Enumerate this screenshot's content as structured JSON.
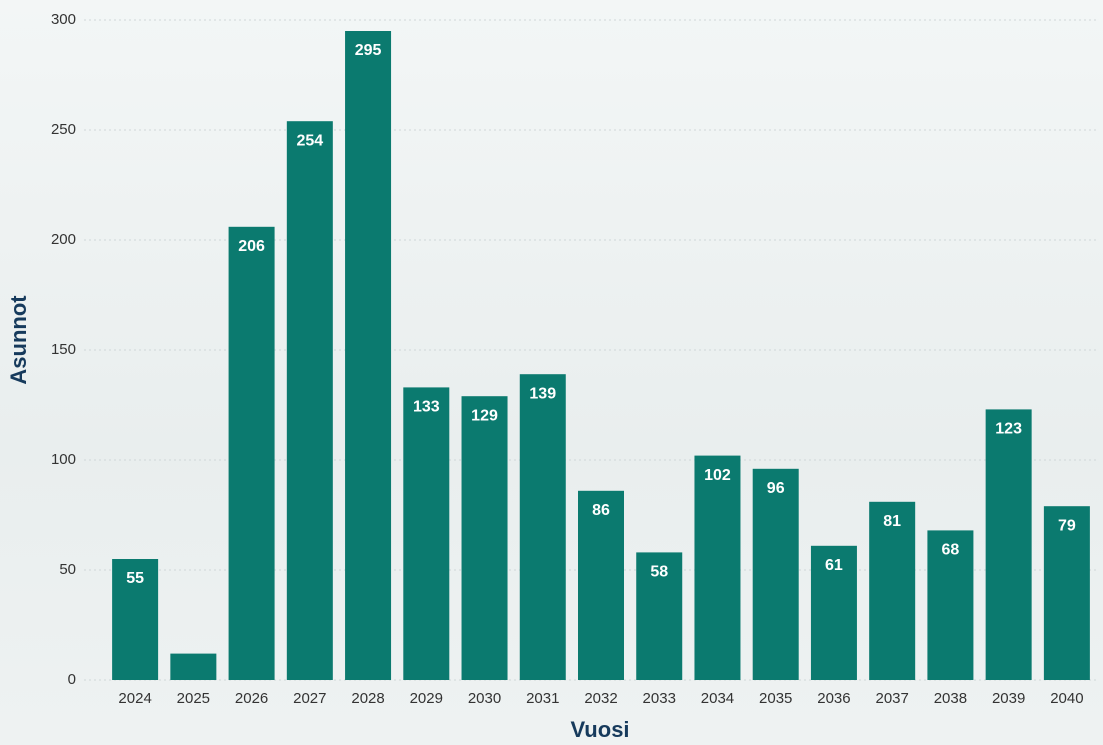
{
  "chart_data": {
    "type": "bar",
    "xlabel": "Vuosi",
    "ylabel": "Asunnot",
    "categories": [
      "2024",
      "2025",
      "2026",
      "2027",
      "2028",
      "2029",
      "2030",
      "2031",
      "2032",
      "2033",
      "2034",
      "2035",
      "2036",
      "2037",
      "2038",
      "2039",
      "2040"
    ],
    "values": [
      55,
      12,
      206,
      254,
      295,
      133,
      129,
      139,
      86,
      58,
      102,
      96,
      61,
      81,
      68,
      123,
      79
    ],
    "color": "#0b7a6f",
    "ylim": [
      0,
      300
    ],
    "yticks": [
      0,
      50,
      100,
      150,
      200,
      250,
      300
    ],
    "grid": true
  }
}
